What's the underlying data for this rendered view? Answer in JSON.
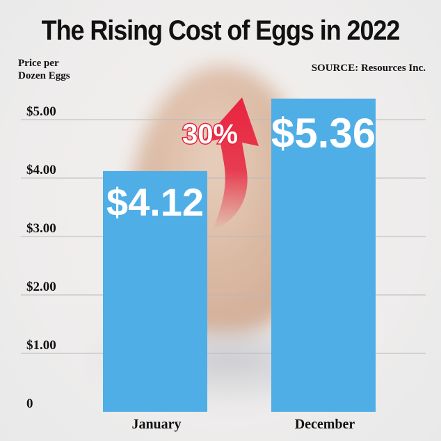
{
  "chart_data": {
    "type": "bar",
    "title": "The Rising Cost of Eggs in 2022",
    "ylabel": "Price per\nDozen Eggs",
    "source": "SOURCE: Resources Inc.",
    "categories": [
      "January",
      "December"
    ],
    "values": [
      4.12,
      5.36
    ],
    "data_labels": [
      "$4.12",
      "$5.36"
    ],
    "ylim": [
      0,
      5.5
    ],
    "yticks": [
      0,
      1,
      2,
      3,
      4,
      5
    ],
    "ytick_labels": [
      "0",
      "$1.00",
      "$2.00",
      "$3.00",
      "$4.00",
      "$5.00"
    ],
    "grid": true,
    "annotation": "30%",
    "colors": {
      "bar": "#4faee6",
      "arrow": "#e8243f",
      "grid": "#b9b9b9"
    }
  }
}
